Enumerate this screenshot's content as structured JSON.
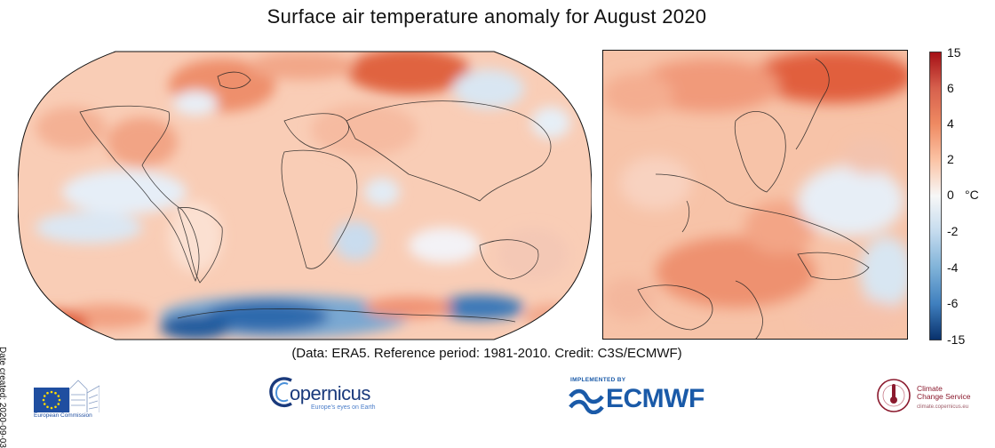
{
  "title": "Surface air temperature anomaly for August 2020",
  "date_created": "Date created: 2020-09-03",
  "credit_line": "(Data: ERA5.  Reference period: 1981-2010.  Credit: C3S/ECMWF)",
  "colorbar": {
    "unit": "°C",
    "ticks": [
      "15",
      "6",
      "4",
      "2",
      "0",
      "-2",
      "-4",
      "-6",
      "-15"
    ],
    "colors": [
      "#b2182b",
      "#d6604d",
      "#f4a582",
      "#fddbc7",
      "#f7f7f7",
      "#d1e5f0",
      "#92c5de",
      "#4393c3",
      "#2166ac"
    ]
  },
  "maps": {
    "world": {
      "projection": "Robinson",
      "dominant_anomaly": "warm"
    },
    "europe": {
      "region": "Europe",
      "dominant_anomaly": "warm"
    }
  },
  "logos": {
    "eu": {
      "name": "eu-logo",
      "text": "European Commission"
    },
    "copernicus": {
      "name": "copernicus-logo",
      "word": "opernicus",
      "sub": "Europe's eyes on Earth"
    },
    "ecmwf": {
      "name": "ecmwf-logo",
      "implemented": "IMPLEMENTED BY",
      "word": "ECMWF"
    },
    "c3s": {
      "name": "c3s-logo",
      "title_line1": "Climate",
      "title_line2": "Change Service",
      "sub": "climate.copernicus.eu"
    }
  }
}
